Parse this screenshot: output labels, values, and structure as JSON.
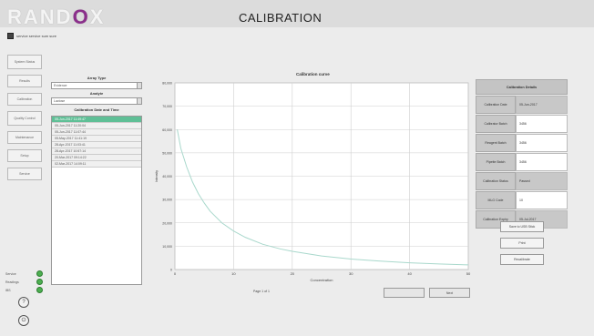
{
  "brand": {
    "logo_prefix": "RAND",
    "logo_o": "O",
    "logo_suffix": "X"
  },
  "title": "CALIBRATION",
  "service": {
    "text": "service service sum sure"
  },
  "nav": [
    {
      "id": "system-status",
      "label": "System Status"
    },
    {
      "id": "results",
      "label": "Results"
    },
    {
      "id": "calibration",
      "label": "Calibration"
    },
    {
      "id": "quality-control",
      "label": "Quality Control"
    },
    {
      "id": "maintenance",
      "label": "Maintenance"
    },
    {
      "id": "setup",
      "label": "Setup"
    },
    {
      "id": "service",
      "label": "Service"
    }
  ],
  "status": [
    {
      "label": "Service",
      "color": "#4caf50"
    },
    {
      "label": "Readings",
      "color": "#4caf50"
    },
    {
      "label": "IBS",
      "color": "#4caf50"
    }
  ],
  "round_buttons": {
    "help": "?",
    "power": "⏻"
  },
  "left": {
    "array_type_label": "Array Type",
    "array_type_value": "Evidence",
    "analyte_label": "Analyte",
    "analyte_value": "Lactose",
    "list_label": "Calibration Date and Time",
    "list_items": [
      "05-Jun-2017 11:49:47",
      "05-Jun-2017 11:20:04",
      "05-Jun-2017 11:07:44",
      "05-May-2017 11:41:19",
      "28-Apr-2017 11:03:41",
      "28-Apr-2017 10:57:14",
      "20-Mar-2017 09:14:22",
      "02-Mar-2017 14:09:11"
    ],
    "selected_index": 0
  },
  "chart_data": {
    "type": "line",
    "title": "Calibration curve",
    "xlabel": "Concentration",
    "ylabel": "Intensity",
    "xlim": [
      0,
      50
    ],
    "ylim": [
      0,
      80000
    ],
    "x_ticks": [
      0,
      10,
      20,
      30,
      40,
      50
    ],
    "y_ticks": [
      0,
      10000,
      20000,
      30000,
      40000,
      50000,
      60000,
      70000,
      80000
    ],
    "y_tick_labels": [
      "0",
      "10,000",
      "20,000",
      "30,000",
      "40,000",
      "50,000",
      "60,000",
      "70,000",
      "80,000"
    ],
    "grid": true,
    "line_color": "#a9d8cc",
    "series": [
      {
        "x": [
          0.4,
          1,
          2,
          3,
          4,
          5,
          6,
          8,
          10,
          12,
          15,
          18,
          20,
          25,
          30,
          35,
          40,
          45,
          50
        ],
        "values": [
          60000,
          52000,
          44000,
          37500,
          32500,
          28500,
          25000,
          20000,
          16500,
          13800,
          10800,
          8800,
          7800,
          5800,
          4500,
          3600,
          2900,
          2400,
          2000
        ]
      }
    ],
    "page_indicator": "Page 1 of 1"
  },
  "info": {
    "title": "Calibration Details",
    "rows": [
      {
        "label": "Calibration Date",
        "value": "05-Jun-2017",
        "grey": true
      },
      {
        "label": "Calibrator Batch",
        "value": "3456",
        "grey": false
      },
      {
        "label": "Reagent Batch",
        "value": "3456",
        "grey": false
      },
      {
        "label": "Pipette Batch",
        "value": "3456",
        "grey": false
      },
      {
        "label": "Calibration Status",
        "value": "Passed",
        "grey": true
      },
      {
        "label": "MLG Code",
        "value": "10",
        "grey": false
      },
      {
        "label": "Calibration Expiry",
        "value": "05-Jul-2017",
        "grey": true
      }
    ]
  },
  "actions": {
    "save_to_usb": "Save to USB Stick",
    "print": "Print",
    "recalibrate": "Recalibrate",
    "prev": "",
    "next": "Next"
  }
}
